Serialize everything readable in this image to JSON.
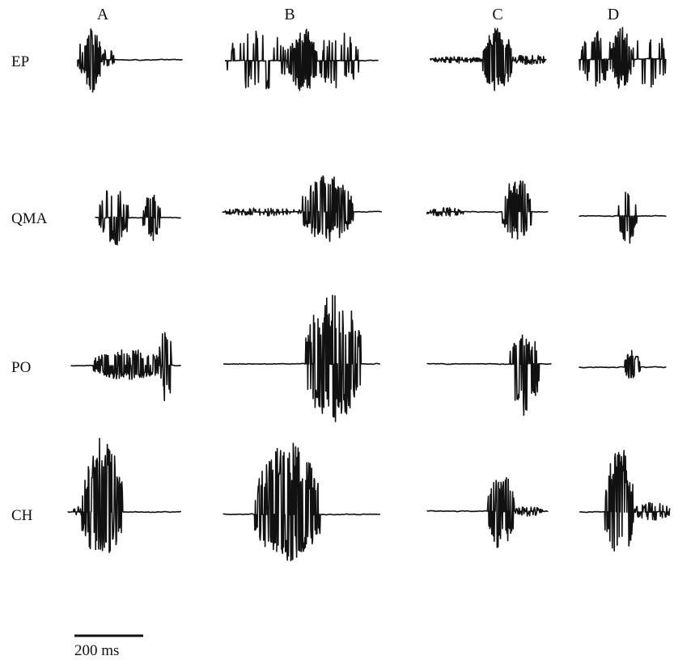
{
  "columns": [
    {
      "id": "A",
      "label": "A"
    },
    {
      "id": "B",
      "label": "B"
    },
    {
      "id": "C",
      "label": "C"
    },
    {
      "id": "D",
      "label": "D"
    }
  ],
  "rows": [
    {
      "id": "ep",
      "label": "EP"
    },
    {
      "id": "qma",
      "label": "QMA"
    },
    {
      "id": "po",
      "label": "PO"
    },
    {
      "id": "ch",
      "label": "CH"
    }
  ],
  "scale_bar": {
    "label": "200 ms"
  },
  "colors": {
    "trace": "#111111",
    "background": "#ffffff"
  }
}
